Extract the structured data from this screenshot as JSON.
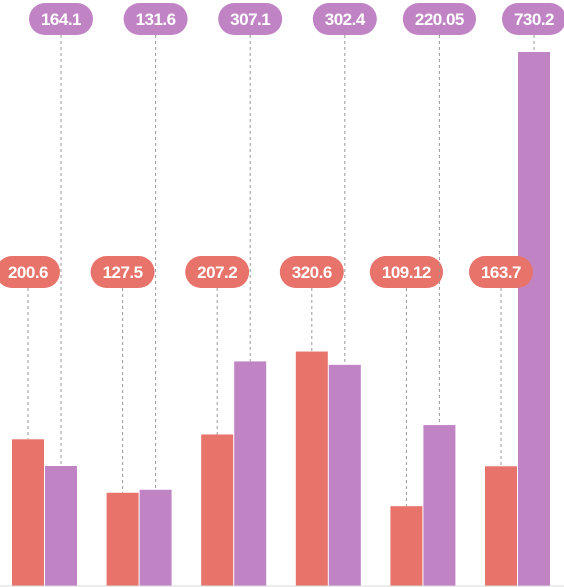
{
  "chart_data": {
    "type": "bar",
    "categories": [
      "",
      "",
      "",
      "",
      "",
      ""
    ],
    "series": [
      {
        "color": "#e8736a",
        "values": [
          200.6,
          127.5,
          207.2,
          320.6,
          109.12,
          163.7
        ],
        "labels": [
          "200.6",
          "127.5",
          "207.2",
          "320.6",
          "109.12",
          "163.7"
        ]
      },
      {
        "color": "#c084c4",
        "values": [
          164.1,
          131.6,
          307.1,
          302.4,
          220.05,
          730.2
        ],
        "labels": [
          "164.1",
          "131.6",
          "307.1",
          "302.4",
          "220.05",
          "730.2"
        ]
      }
    ],
    "ylim": [
      0,
      730.2
    ],
    "grid": false,
    "legend": "none",
    "title": "",
    "xlabel": "",
    "ylabel": ""
  }
}
